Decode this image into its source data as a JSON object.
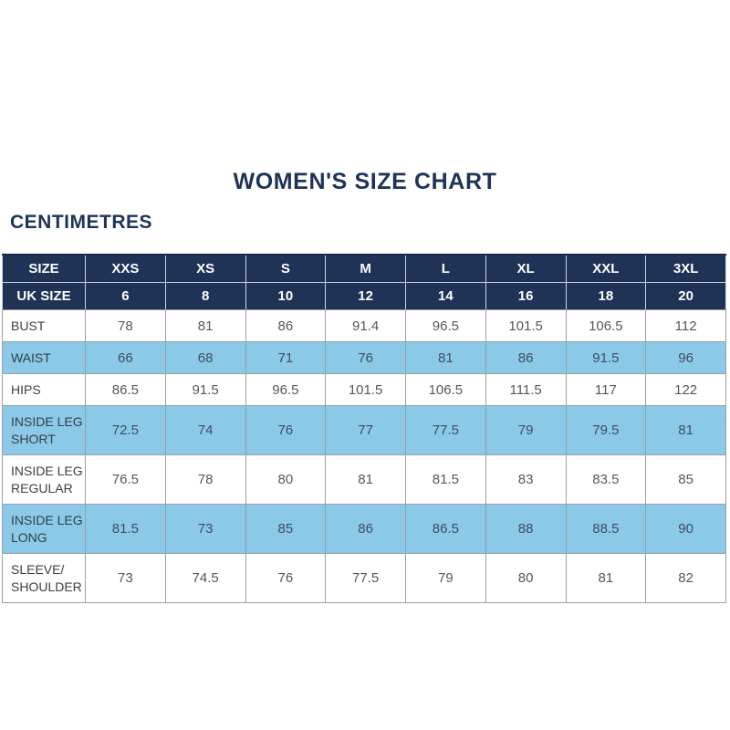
{
  "header": {
    "title": "WOMEN'S SIZE CHART",
    "unit_label": "CENTIMETRES"
  },
  "colors": {
    "navy_header": "#1f3357",
    "title_text": "#1e3356",
    "row_light_blue": "#8bc9e9",
    "row_white": "#ffffff",
    "header_text": "#ffffff",
    "value_text": "#55575c",
    "value_text_on_blue": "#3e4d61",
    "grid_border": "#9b9fa5"
  },
  "chart_data": {
    "type": "table",
    "title": "WOMEN'S SIZE CHART",
    "unit_label": "CENTIMETRES",
    "layout_hints": {
      "header_row_background": "navy",
      "body_row_striping": "white / light-blue alternating",
      "first_column_align": "left",
      "value_align": "center"
    },
    "header_rows": [
      {
        "cells": [
          "SIZE",
          "XXS",
          "XS",
          "S",
          "M",
          "L",
          "XL",
          "XXL",
          "3XL"
        ]
      },
      {
        "cells": [
          "UK SIZE",
          "6",
          "8",
          "10",
          "12",
          "14",
          "16",
          "18",
          "20"
        ]
      }
    ],
    "rows": [
      {
        "label": "BUST",
        "values": [
          "78",
          "81",
          "86",
          "91.4",
          "96.5",
          "101.5",
          "106.5",
          "112"
        ]
      },
      {
        "label": "WAIST",
        "values": [
          "66",
          "68",
          "71",
          "76",
          "81",
          "86",
          "91.5",
          "96"
        ]
      },
      {
        "label": "HIPS",
        "values": [
          "86.5",
          "91.5",
          "96.5",
          "101.5",
          "106.5",
          "111.5",
          "117",
          "122"
        ]
      },
      {
        "label": "INSIDE LEG SHORT",
        "values": [
          "72.5",
          "74",
          "76",
          "77",
          "77.5",
          "79",
          "79.5",
          "81"
        ]
      },
      {
        "label": "INSIDE LEG REGULAR",
        "values": [
          "76.5",
          "78",
          "80",
          "81",
          "81.5",
          "83",
          "83.5",
          "85"
        ]
      },
      {
        "label": "INSIDE LEG LONG",
        "values": [
          "81.5",
          "73",
          "85",
          "86",
          "86.5",
          "88",
          "88.5",
          "90"
        ]
      },
      {
        "label": "SLEEVE/ SHOULDER",
        "values": [
          "73",
          "74.5",
          "76",
          "77.5",
          "79",
          "80",
          "81",
          "82"
        ]
      }
    ]
  }
}
